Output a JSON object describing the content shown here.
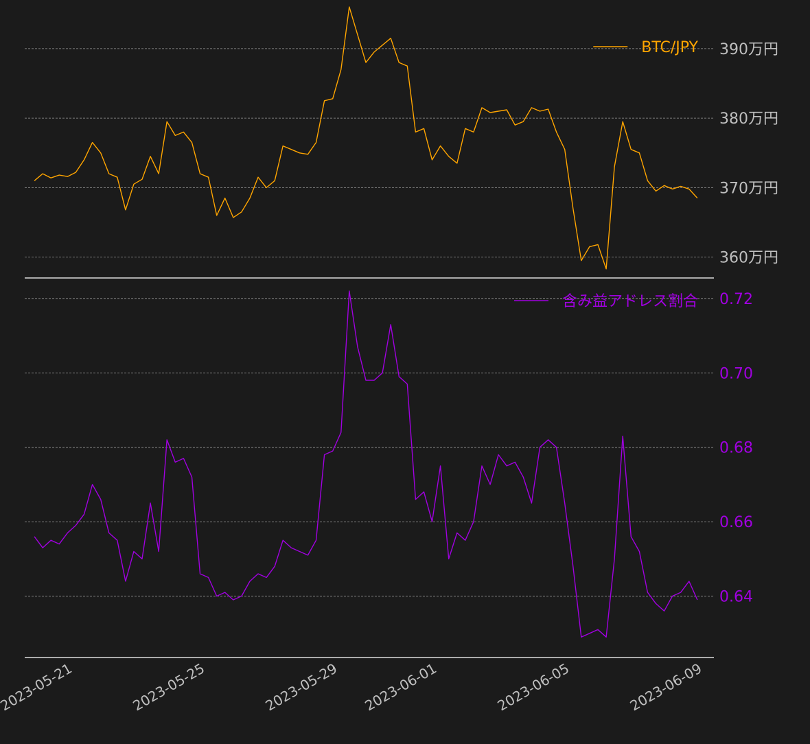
{
  "background": "#1b1b1b",
  "chart_data": [
    {
      "type": "line",
      "panel": "top",
      "title": "",
      "xlabel": "",
      "ylabel": "",
      "legend_placement": "top-right",
      "grid": true,
      "ylim": [
        357,
        397
      ],
      "y_ticks": [
        {
          "value": 360,
          "label": "360万円"
        },
        {
          "value": 370,
          "label": "370万円"
        },
        {
          "value": 380,
          "label": "380万円"
        },
        {
          "value": 390,
          "label": "390万円"
        }
      ],
      "tick_color": "#bfbfbf",
      "series": [
        {
          "name": "BTC/JPY",
          "color": "#ffa500",
          "points": [
            [
              "2023-05-20 00:00",
              371.0
            ],
            [
              "2023-05-20 06:00",
              372.0
            ],
            [
              "2023-05-20 12:00",
              371.4
            ],
            [
              "2023-05-20 18:00",
              371.8
            ],
            [
              "2023-05-21 00:00",
              371.6
            ],
            [
              "2023-05-21 06:00",
              372.2
            ],
            [
              "2023-05-21 12:00",
              374.0
            ],
            [
              "2023-05-21 18:00",
              376.5
            ],
            [
              "2023-05-22 00:00",
              375.0
            ],
            [
              "2023-05-22 06:00",
              372.0
            ],
            [
              "2023-05-22 12:00",
              371.5
            ],
            [
              "2023-05-22 18:00",
              366.8
            ],
            [
              "2023-05-23 00:00",
              370.5
            ],
            [
              "2023-05-23 06:00",
              371.2
            ],
            [
              "2023-05-23 12:00",
              374.5
            ],
            [
              "2023-05-23 18:00",
              372.0
            ],
            [
              "2023-05-24 00:00",
              379.5
            ],
            [
              "2023-05-24 06:00",
              377.5
            ],
            [
              "2023-05-24 12:00",
              378.0
            ],
            [
              "2023-05-24 18:00",
              376.5
            ],
            [
              "2023-05-25 00:00",
              372.0
            ],
            [
              "2023-05-25 06:00",
              371.5
            ],
            [
              "2023-05-25 12:00",
              366.0
            ],
            [
              "2023-05-25 18:00",
              368.5
            ],
            [
              "2023-05-26 00:00",
              365.7
            ],
            [
              "2023-05-26 06:00",
              366.5
            ],
            [
              "2023-05-26 12:00",
              368.5
            ],
            [
              "2023-05-26 18:00",
              371.5
            ],
            [
              "2023-05-27 00:00",
              370.0
            ],
            [
              "2023-05-27 06:00",
              371.0
            ],
            [
              "2023-05-27 12:00",
              376.0
            ],
            [
              "2023-05-27 18:00",
              375.5
            ],
            [
              "2023-05-28 00:00",
              375.0
            ],
            [
              "2023-05-28 06:00",
              374.8
            ],
            [
              "2023-05-28 12:00",
              376.5
            ],
            [
              "2023-05-28 18:00",
              382.5
            ],
            [
              "2023-05-29 00:00",
              382.8
            ],
            [
              "2023-05-29 06:00",
              387.0
            ],
            [
              "2023-05-29 12:00",
              396.0
            ],
            [
              "2023-05-29 18:00",
              392.0
            ],
            [
              "2023-05-30 00:00",
              388.0
            ],
            [
              "2023-05-30 06:00",
              389.5
            ],
            [
              "2023-05-30 12:00",
              390.5
            ],
            [
              "2023-05-30 18:00",
              391.5
            ],
            [
              "2023-05-31 00:00",
              388.0
            ],
            [
              "2023-05-31 06:00",
              387.5
            ],
            [
              "2023-05-31 12:00",
              378.0
            ],
            [
              "2023-05-31 18:00",
              378.5
            ],
            [
              "2023-06-01 00:00",
              374.0
            ],
            [
              "2023-06-01 06:00",
              376.0
            ],
            [
              "2023-06-01 12:00",
              374.5
            ],
            [
              "2023-06-01 18:00",
              373.5
            ],
            [
              "2023-06-02 00:00",
              378.5
            ],
            [
              "2023-06-02 06:00",
              378.0
            ],
            [
              "2023-06-02 12:00",
              381.5
            ],
            [
              "2023-06-02 18:00",
              380.8
            ],
            [
              "2023-06-03 00:00",
              381.0
            ],
            [
              "2023-06-03 06:00",
              381.2
            ],
            [
              "2023-06-03 12:00",
              379.0
            ],
            [
              "2023-06-03 18:00",
              379.5
            ],
            [
              "2023-06-04 00:00",
              381.5
            ],
            [
              "2023-06-04 06:00",
              381.0
            ],
            [
              "2023-06-04 12:00",
              381.3
            ],
            [
              "2023-06-04 18:00",
              378.0
            ],
            [
              "2023-06-05 00:00",
              375.5
            ],
            [
              "2023-06-05 06:00",
              367.0
            ],
            [
              "2023-06-05 12:00",
              359.5
            ],
            [
              "2023-06-05 18:00",
              361.5
            ],
            [
              "2023-06-06 00:00",
              361.8
            ],
            [
              "2023-06-06 06:00",
              358.3
            ],
            [
              "2023-06-06 12:00",
              373.0
            ],
            [
              "2023-06-06 18:00",
              379.5
            ],
            [
              "2023-06-07 00:00",
              375.5
            ],
            [
              "2023-06-07 06:00",
              375.0
            ],
            [
              "2023-06-07 12:00",
              371.0
            ],
            [
              "2023-06-07 18:00",
              369.5
            ],
            [
              "2023-06-08 00:00",
              370.3
            ],
            [
              "2023-06-08 06:00",
              369.8
            ],
            [
              "2023-06-08 12:00",
              370.2
            ],
            [
              "2023-06-08 18:00",
              369.8
            ],
            [
              "2023-06-09 00:00",
              368.5
            ]
          ]
        }
      ]
    },
    {
      "type": "line",
      "panel": "bottom",
      "title": "",
      "xlabel": "",
      "ylabel": "",
      "legend_placement": "top-right",
      "grid": true,
      "ylim": [
        0.6235,
        0.7255
      ],
      "y_ticks": [
        {
          "value": 0.64,
          "label": "0.64"
        },
        {
          "value": 0.66,
          "label": "0.66"
        },
        {
          "value": 0.68,
          "label": "0.68"
        },
        {
          "value": 0.7,
          "label": "0.70"
        },
        {
          "value": 0.72,
          "label": "0.72"
        }
      ],
      "tick_color": "#a000e0",
      "xlim": [
        "2023-05-19 17:00",
        "2023-06-09 12:00"
      ],
      "x_ticks": [
        {
          "value": "2023-05-21",
          "label": "2023-05-21"
        },
        {
          "value": "2023-05-25",
          "label": "2023-05-25"
        },
        {
          "value": "2023-05-29",
          "label": "2023-05-29"
        },
        {
          "value": "2023-06-01",
          "label": "2023-06-01"
        },
        {
          "value": "2023-06-05",
          "label": "2023-06-05"
        },
        {
          "value": "2023-06-09",
          "label": "2023-06-09"
        }
      ],
      "series": [
        {
          "name": "含み益アドレス割合",
          "color": "#a000e0",
          "points": [
            [
              "2023-05-20 00:00",
              0.656
            ],
            [
              "2023-05-20 06:00",
              0.653
            ],
            [
              "2023-05-20 12:00",
              0.655
            ],
            [
              "2023-05-20 18:00",
              0.654
            ],
            [
              "2023-05-21 00:00",
              0.657
            ],
            [
              "2023-05-21 06:00",
              0.659
            ],
            [
              "2023-05-21 12:00",
              0.662
            ],
            [
              "2023-05-21 18:00",
              0.67
            ],
            [
              "2023-05-22 00:00",
              0.666
            ],
            [
              "2023-05-22 06:00",
              0.657
            ],
            [
              "2023-05-22 12:00",
              0.655
            ],
            [
              "2023-05-22 18:00",
              0.644
            ],
            [
              "2023-05-23 00:00",
              0.652
            ],
            [
              "2023-05-23 06:00",
              0.65
            ],
            [
              "2023-05-23 12:00",
              0.665
            ],
            [
              "2023-05-23 18:00",
              0.652
            ],
            [
              "2023-05-24 00:00",
              0.682
            ],
            [
              "2023-05-24 06:00",
              0.676
            ],
            [
              "2023-05-24 12:00",
              0.677
            ],
            [
              "2023-05-24 18:00",
              0.672
            ],
            [
              "2023-05-25 00:00",
              0.646
            ],
            [
              "2023-05-25 06:00",
              0.645
            ],
            [
              "2023-05-25 12:00",
              0.64
            ],
            [
              "2023-05-25 18:00",
              0.641
            ],
            [
              "2023-05-26 00:00",
              0.639
            ],
            [
              "2023-05-26 06:00",
              0.64
            ],
            [
              "2023-05-26 12:00",
              0.644
            ],
            [
              "2023-05-26 18:00",
              0.646
            ],
            [
              "2023-05-27 00:00",
              0.645
            ],
            [
              "2023-05-27 06:00",
              0.648
            ],
            [
              "2023-05-27 12:00",
              0.655
            ],
            [
              "2023-05-27 18:00",
              0.653
            ],
            [
              "2023-05-28 00:00",
              0.652
            ],
            [
              "2023-05-28 06:00",
              0.651
            ],
            [
              "2023-05-28 12:00",
              0.655
            ],
            [
              "2023-05-28 18:00",
              0.678
            ],
            [
              "2023-05-29 00:00",
              0.679
            ],
            [
              "2023-05-29 06:00",
              0.684
            ],
            [
              "2023-05-29 12:00",
              0.722
            ],
            [
              "2023-05-29 18:00",
              0.707
            ],
            [
              "2023-05-30 00:00",
              0.698
            ],
            [
              "2023-05-30 06:00",
              0.698
            ],
            [
              "2023-05-30 12:00",
              0.7
            ],
            [
              "2023-05-30 18:00",
              0.713
            ],
            [
              "2023-05-31 00:00",
              0.699
            ],
            [
              "2023-05-31 06:00",
              0.697
            ],
            [
              "2023-05-31 12:00",
              0.666
            ],
            [
              "2023-05-31 18:00",
              0.668
            ],
            [
              "2023-06-01 00:00",
              0.66
            ],
            [
              "2023-06-01 06:00",
              0.675
            ],
            [
              "2023-06-01 12:00",
              0.65
            ],
            [
              "2023-06-01 18:00",
              0.657
            ],
            [
              "2023-06-02 00:00",
              0.655
            ],
            [
              "2023-06-02 06:00",
              0.66
            ],
            [
              "2023-06-02 12:00",
              0.675
            ],
            [
              "2023-06-02 18:00",
              0.67
            ],
            [
              "2023-06-03 00:00",
              0.678
            ],
            [
              "2023-06-03 06:00",
              0.675
            ],
            [
              "2023-06-03 12:00",
              0.676
            ],
            [
              "2023-06-03 18:00",
              0.672
            ],
            [
              "2023-06-04 00:00",
              0.665
            ],
            [
              "2023-06-04 06:00",
              0.68
            ],
            [
              "2023-06-04 12:00",
              0.682
            ],
            [
              "2023-06-04 18:00",
              0.68
            ],
            [
              "2023-06-05 00:00",
              0.665
            ],
            [
              "2023-06-05 06:00",
              0.648
            ],
            [
              "2023-06-05 12:00",
              0.629
            ],
            [
              "2023-06-05 18:00",
              0.63
            ],
            [
              "2023-06-06 00:00",
              0.631
            ],
            [
              "2023-06-06 06:00",
              0.629
            ],
            [
              "2023-06-06 12:00",
              0.65
            ],
            [
              "2023-06-06 18:00",
              0.683
            ],
            [
              "2023-06-07 00:00",
              0.656
            ],
            [
              "2023-06-07 06:00",
              0.652
            ],
            [
              "2023-06-07 12:00",
              0.641
            ],
            [
              "2023-06-07 18:00",
              0.638
            ],
            [
              "2023-06-08 00:00",
              0.636
            ],
            [
              "2023-06-08 06:00",
              0.64
            ],
            [
              "2023-06-08 12:00",
              0.641
            ],
            [
              "2023-06-08 18:00",
              0.644
            ],
            [
              "2023-06-09 00:00",
              0.639
            ]
          ]
        }
      ]
    }
  ]
}
